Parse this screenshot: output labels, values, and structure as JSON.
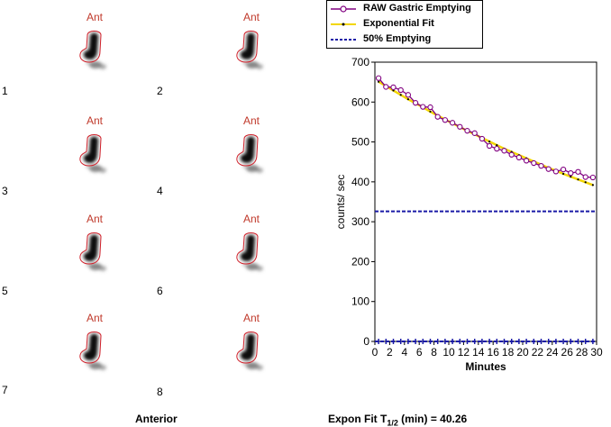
{
  "panel": {
    "view_label": "Anterior",
    "frames": [
      {
        "ant": "Ant",
        "number": "1"
      },
      {
        "ant": "Ant",
        "number": "2"
      },
      {
        "ant": "Ant",
        "number": "3"
      },
      {
        "ant": "Ant",
        "number": "4"
      },
      {
        "ant": "Ant",
        "number": "5"
      },
      {
        "ant": "Ant",
        "number": "6"
      },
      {
        "ant": "Ant",
        "number": "7"
      },
      {
        "ant": "Ant",
        "number": "8"
      }
    ]
  },
  "legend": {
    "items": [
      {
        "label": "RAW Gastric Emptying",
        "color": "#800080"
      },
      {
        "label": "Exponential Fit",
        "color": "#f2d600"
      },
      {
        "label": "50% Emptying",
        "color": "#1a1aa6"
      }
    ]
  },
  "result": {
    "prefix": "Expon Fit T",
    "subscript": "1/2",
    "suffix": " (min) = 40.26"
  },
  "chart_data": {
    "type": "line",
    "title": "",
    "xlabel": "Minutes",
    "ylabel": "counts/ sec",
    "xlim": [
      0,
      30
    ],
    "ylim": [
      0,
      700
    ],
    "xticks": [
      "0",
      "2",
      "4",
      "6",
      "8",
      "10",
      "12",
      "14",
      "16",
      "18",
      "20",
      "22",
      "24",
      "26",
      "28",
      "30"
    ],
    "yticks": [
      "0",
      "100",
      "200",
      "300",
      "400",
      "500",
      "600",
      "700"
    ],
    "series": [
      {
        "name": "RAW Gastric Emptying",
        "color": "#800080",
        "marker": "circle",
        "x": [
          0.5,
          1.5,
          2.5,
          3.5,
          4.5,
          5.5,
          6.5,
          7.5,
          8.5,
          9.5,
          10.5,
          11.5,
          12.5,
          13.5,
          14.5,
          15.5,
          16.5,
          17.5,
          18.5,
          19.5,
          20.5,
          21.5,
          22.5,
          23.5,
          24.5,
          25.5,
          26.5,
          27.5,
          28.5,
          29.5
        ],
        "y": [
          660,
          638,
          637,
          630,
          618,
          598,
          588,
          587,
          563,
          555,
          548,
          538,
          528,
          522,
          508,
          490,
          483,
          478,
          468,
          461,
          453,
          447,
          440,
          432,
          426,
          431,
          422,
          425,
          412,
          411
        ]
      },
      {
        "name": "Exponential Fit",
        "color": "#f2d600",
        "marker": "dot",
        "x": [
          0.5,
          1.5,
          2.5,
          3.5,
          4.5,
          5.5,
          6.5,
          7.5,
          8.5,
          9.5,
          10.5,
          11.5,
          12.5,
          13.5,
          14.5,
          15.5,
          16.5,
          17.5,
          18.5,
          19.5,
          20.5,
          21.5,
          22.5,
          23.5,
          24.5,
          25.5,
          26.5,
          27.5,
          28.5,
          29.5
        ],
        "y": [
          651,
          640,
          629,
          618,
          607,
          597,
          587,
          576,
          566,
          556,
          547,
          537,
          528,
          519,
          510,
          501,
          492,
          483,
          475,
          467,
          459,
          451,
          443,
          435,
          428,
          420,
          413,
          406,
          399,
          392
        ]
      },
      {
        "name": "50% Emptying",
        "color": "#1a1aa6",
        "marker": "none",
        "x": [
          0,
          30
        ],
        "y": [
          326,
          326
        ]
      }
    ],
    "baseline_markers": {
      "x": [
        0.5,
        1.5,
        2.5,
        3.5,
        4.5,
        5.5,
        6.5,
        7.5,
        8.5,
        9.5,
        10.5,
        11.5,
        12.5,
        13.5,
        14.5,
        15.5,
        16.5,
        17.5,
        18.5,
        19.5,
        20.5,
        21.5,
        22.5,
        23.5,
        24.5,
        25.5,
        26.5,
        27.5,
        28.5,
        29.5
      ],
      "y": 0
    }
  }
}
